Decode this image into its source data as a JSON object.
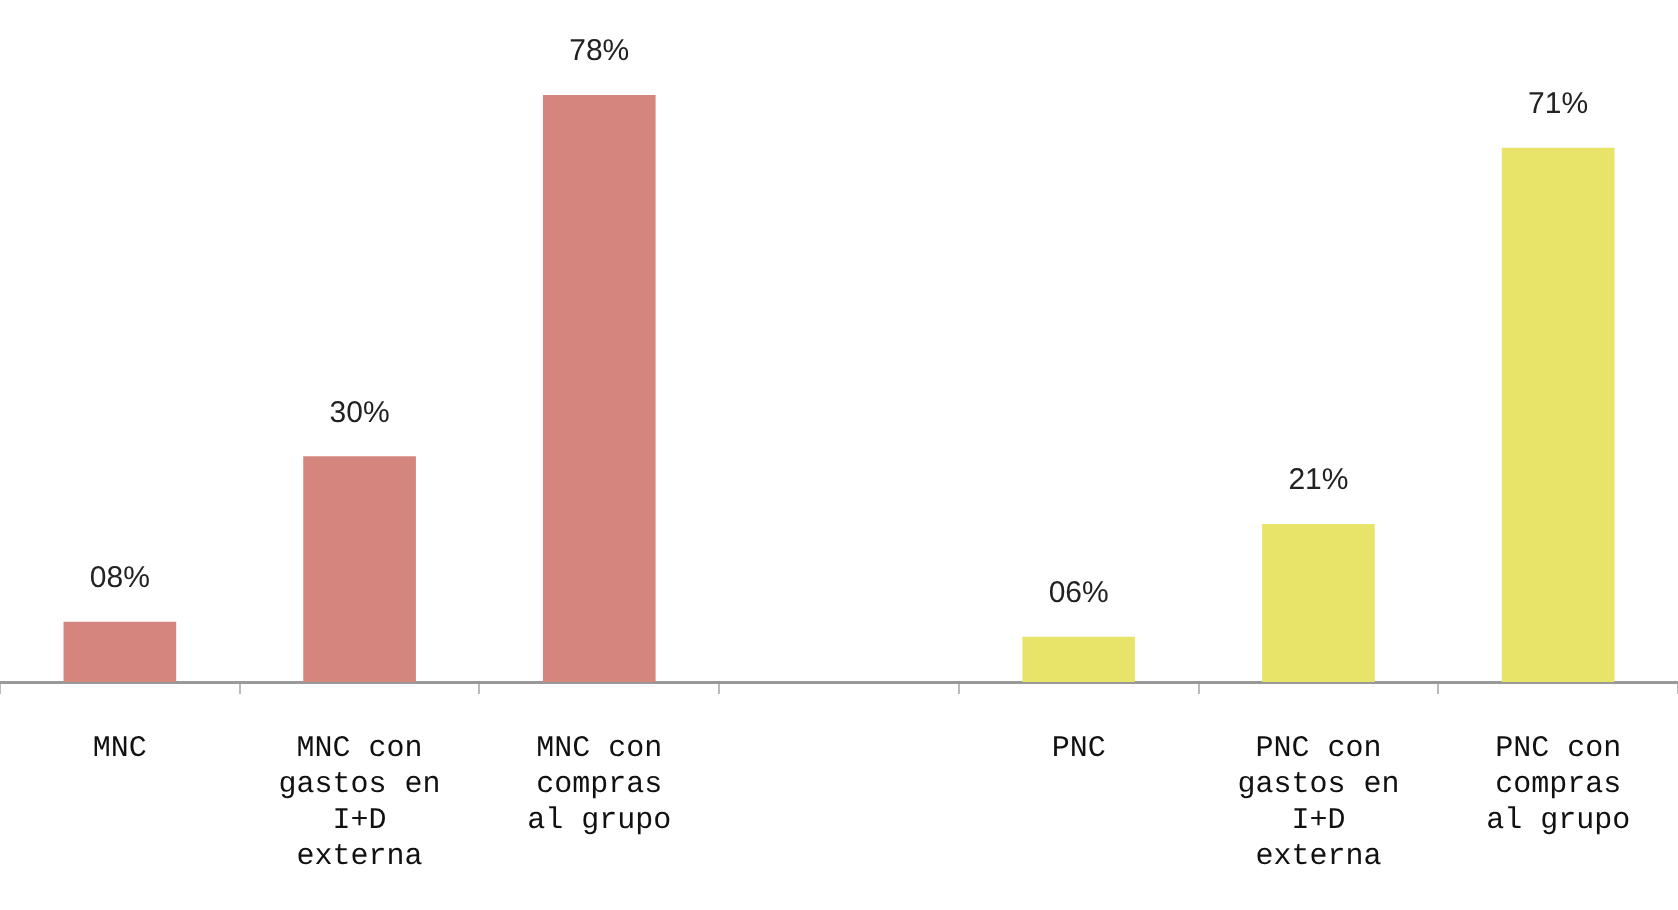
{
  "chart_data": {
    "type": "bar",
    "categories": [
      "MNC",
      "MNC con gastos en I+D externa",
      "MNC con compras al grupo",
      null,
      "PNC",
      "PNC con gastos en I+D externa",
      "PNC con compras al grupo"
    ],
    "values": [
      8,
      30,
      78,
      null,
      6,
      21,
      71
    ],
    "value_labels": [
      "08%",
      "30%",
      "78%",
      null,
      "06%",
      "21%",
      "71%"
    ],
    "colors": [
      "#d4867e",
      "#d4867e",
      "#d4867e",
      "#ffffff",
      "#e8e46a",
      "#e8e46a",
      "#e8e46a"
    ],
    "grid": false,
    "legend": false
  }
}
